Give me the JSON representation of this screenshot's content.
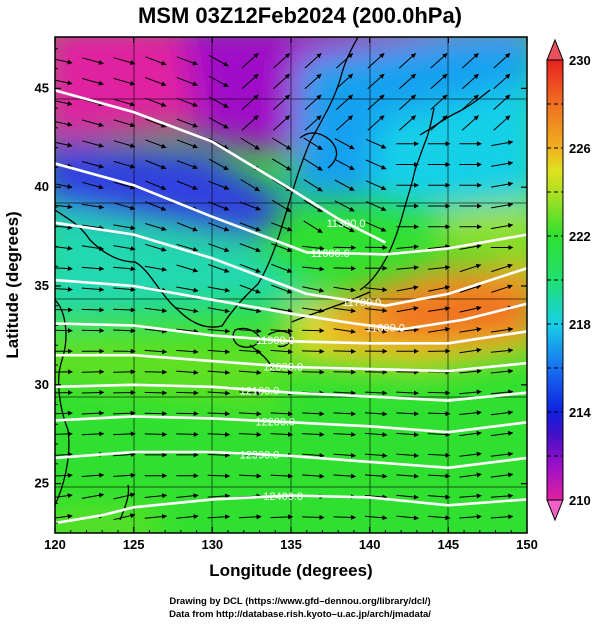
{
  "title": "MSM 03Z12Feb2024 (200.0hPa)",
  "x_axis": {
    "label": "Longitude (degrees)",
    "min": 120,
    "max": 150,
    "ticks": [
      120,
      125,
      130,
      135,
      140,
      145,
      150
    ]
  },
  "y_axis": {
    "label": "Latitude  (degrees)",
    "min": 22.5,
    "max": 47.6,
    "ticks": [
      25,
      30,
      35,
      40,
      45
    ]
  },
  "colorbar": {
    "min": 210,
    "max": 230,
    "tick_labels": [
      "230",
      "226",
      "222",
      "218",
      "214",
      "210"
    ],
    "colors": {
      "210": "#e020a0",
      "211.5": "#a010c8",
      "213": "#4010c8",
      "214": "#1020e0",
      "216": "#1870f0",
      "218": "#18d0e8",
      "220": "#20e070",
      "222": "#30e030",
      "224": "#b0e020",
      "225": "#e0e020",
      "226": "#f0b020",
      "228": "#f07020",
      "230": "#e82020"
    }
  },
  "contours": [
    {
      "label": "11300.0",
      "points": [
        [
          120,
          44.9
        ],
        [
          125,
          43.8
        ],
        [
          130,
          42.3
        ],
        [
          135,
          39.9
        ],
        [
          138,
          38.4
        ],
        [
          141,
          37.2
        ]
      ]
    },
    {
      "label": "11600.0",
      "points": [
        [
          120,
          41.2
        ],
        [
          125,
          40.1
        ],
        [
          130,
          38.5
        ],
        [
          134,
          37.3
        ],
        [
          136,
          36.7
        ],
        [
          141,
          36.6
        ],
        [
          145,
          36.9
        ],
        [
          150,
          37.6
        ]
      ]
    },
    {
      "label": "11700.0",
      "points": [
        [
          120,
          38.2
        ],
        [
          125,
          37.6
        ],
        [
          130,
          36.4
        ],
        [
          134,
          35.2
        ],
        [
          136,
          34.6
        ],
        [
          141,
          34.0
        ],
        [
          145,
          34.6
        ],
        [
          150,
          35.9
        ]
      ]
    },
    {
      "label": "11800.0",
      "points": [
        [
          120,
          35.3
        ],
        [
          125,
          35.0
        ],
        [
          130,
          34.3
        ],
        [
          135,
          33.6
        ],
        [
          139,
          33.1
        ],
        [
          142,
          32.8
        ],
        [
          146,
          33.3
        ],
        [
          150,
          34.1
        ]
      ]
    },
    {
      "label": "11900.0",
      "points": [
        [
          120,
          33.1
        ],
        [
          125,
          33.0
        ],
        [
          130,
          32.5
        ],
        [
          135,
          32.2
        ],
        [
          140,
          32.1
        ],
        [
          145,
          32.1
        ],
        [
          150,
          32.7
        ]
      ]
    },
    {
      "label": "12000.0",
      "points": [
        [
          120,
          31.5
        ],
        [
          125,
          31.5
        ],
        [
          130,
          31.2
        ],
        [
          135,
          30.9
        ],
        [
          140,
          30.8
        ],
        [
          145,
          30.7
        ],
        [
          150,
          31.1
        ]
      ]
    },
    {
      "label": "12100.0",
      "points": [
        [
          120,
          29.9
        ],
        [
          125,
          30.0
        ],
        [
          130,
          29.9
        ],
        [
          135,
          29.6
        ],
        [
          140,
          29.4
        ],
        [
          145,
          29.2
        ],
        [
          150,
          29.6
        ]
      ]
    },
    {
      "label": "12200.0",
      "points": [
        [
          120,
          28.2
        ],
        [
          125,
          28.4
        ],
        [
          130,
          28.3
        ],
        [
          135,
          28.1
        ],
        [
          140,
          27.9
        ],
        [
          145,
          27.6
        ],
        [
          150,
          28.1
        ]
      ]
    },
    {
      "label": "12300.0",
      "points": [
        [
          120,
          26.3
        ],
        [
          125,
          26.6
        ],
        [
          130,
          26.6
        ],
        [
          135,
          26.4
        ],
        [
          140,
          26.1
        ],
        [
          145,
          25.8
        ],
        [
          150,
          26.3
        ]
      ]
    },
    {
      "label": "12400.0",
      "points": [
        [
          120,
          23.0
        ],
        [
          123,
          23.4
        ],
        [
          125,
          23.8
        ],
        [
          130,
          24.2
        ],
        [
          135,
          24.4
        ],
        [
          140,
          24.3
        ],
        [
          145,
          23.9
        ],
        [
          150,
          24.2
        ]
      ]
    }
  ],
  "credits": [
    "Drawing by DCL (https://www.gfd–dennou.org/library/dcl/)",
    "Data from http://database.rish.kyoto–u.ac.jp/arch/jmadata/"
  ]
}
